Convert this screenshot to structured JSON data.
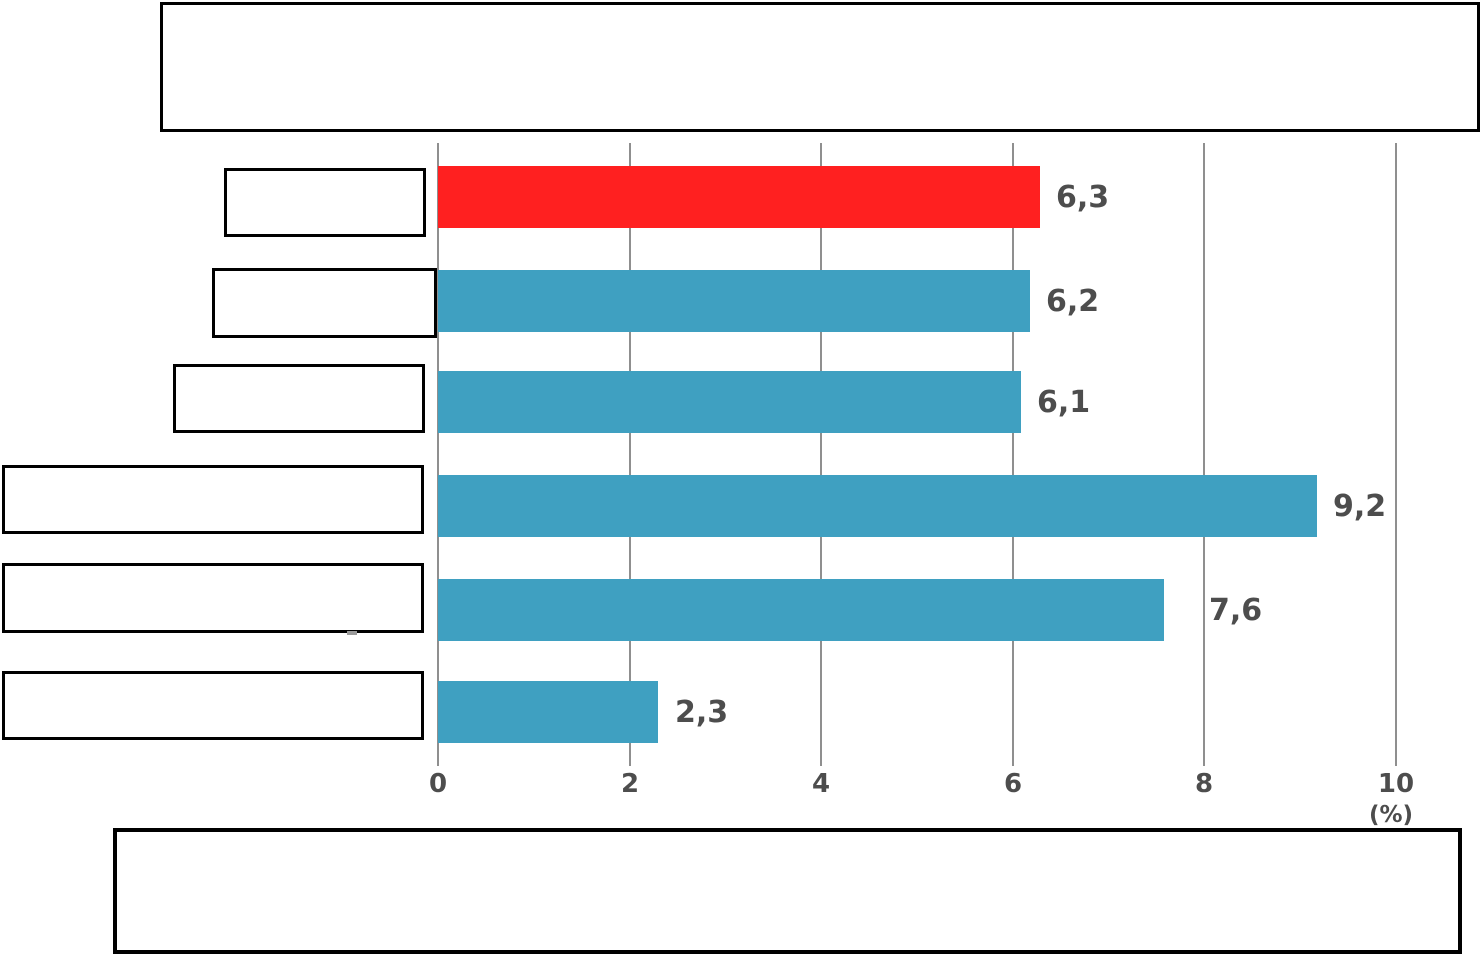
{
  "title_box": {
    "text": ""
  },
  "footer_box": {
    "text": ""
  },
  "chart_data": {
    "type": "bar",
    "orientation": "horizontal",
    "title": "",
    "xlabel": "(%)",
    "categories": [
      "",
      "",
      "",
      "",
      "",
      ""
    ],
    "values": [
      6.3,
      6.2,
      6.1,
      9.2,
      7.6,
      2.3
    ],
    "rows": [
      {
        "category": "",
        "value": 6.3,
        "value_label": "6,3",
        "color": "#ff2020",
        "highlighted": true
      },
      {
        "category": "",
        "value": 6.2,
        "value_label": "6,2",
        "color": "#3fa0c1",
        "highlighted": false
      },
      {
        "category": "",
        "value": 6.1,
        "value_label": "6,1",
        "color": "#3fa0c1",
        "highlighted": false
      },
      {
        "category": "",
        "value": 9.2,
        "value_label": "9,2",
        "color": "#3fa0c1",
        "highlighted": false
      },
      {
        "category": "",
        "value": 7.6,
        "value_label": "7,6",
        "color": "#3fa0c1",
        "highlighted": false
      },
      {
        "category": "",
        "value": 2.3,
        "value_label": "2,3",
        "color": "#3fa0c1",
        "highlighted": false
      }
    ],
    "x_axis": {
      "tick_labels": [
        "0",
        "2",
        "4",
        "6",
        "8",
        "10"
      ],
      "ticks": [
        0,
        2,
        4,
        6,
        8,
        10
      ],
      "range": [
        0,
        10.9
      ],
      "unit_label": "(%)"
    },
    "grid": "vertical-gridlines",
    "legend_position": "none",
    "colors": {
      "bar_highlight": "#ff2020",
      "bar_default": "#3fa0c1",
      "value_text": "#4d4d4d",
      "axis_text": "#4d4d4d",
      "gridline": "#8f8f8f",
      "box_border": "#000000"
    }
  }
}
